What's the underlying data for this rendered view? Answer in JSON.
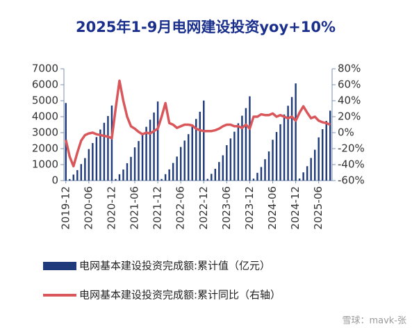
{
  "chart_data": {
    "type": "bar-line",
    "title": "2025年1-9月电网建设投资yoy+10%",
    "watermark": "雪球：mavk-张",
    "categories": [
      "2019-12",
      null,
      null,
      null,
      null,
      null,
      "2020-06",
      null,
      null,
      null,
      null,
      null,
      "2020-12",
      null,
      null,
      null,
      null,
      null,
      "2021-06",
      null,
      null,
      null,
      null,
      null,
      "2021-12",
      null,
      null,
      null,
      null,
      null,
      "2022-06",
      null,
      null,
      null,
      null,
      null,
      "2022-12",
      null,
      null,
      null,
      null,
      null,
      "2023-06",
      null,
      null,
      null,
      null,
      null,
      "2023-12",
      null,
      null,
      null,
      null,
      null,
      "2024-06",
      null,
      null,
      null,
      null,
      null,
      "2024-12",
      null,
      null,
      null,
      null,
      null,
      "2025-06",
      null,
      null,
      null
    ],
    "series": [
      {
        "name": "电网基本建设投资完成额:累计值（亿元）",
        "type": "bar",
        "color": "#1f3a7a",
        "axis": "y",
        "values": [
          4856,
          94,
          376,
          658,
          1034,
          1410,
          1974,
          2350,
          2725,
          3195,
          3618,
          4041,
          4699,
          99,
          396,
          693,
          1089,
          1485,
          2079,
          2476,
          2872,
          3367,
          3812,
          4258,
          4951,
          100,
          401,
          702,
          1103,
          1504,
          2105,
          2506,
          2907,
          3408,
          3859,
          4310,
          5012,
          106,
          422,
          739,
          1161,
          1583,
          2216,
          2638,
          3060,
          3587,
          4062,
          4537,
          5275,
          122,
          487,
          852,
          1338,
          1825,
          2555,
          3042,
          3528,
          4136,
          4684,
          5231,
          6083,
          129,
          515,
          901,
          1416,
          1931,
          2704,
          3219,
          3734,
          4378
        ]
      },
      {
        "name": "电网基本建设投资完成额:累计同比（右轴）",
        "type": "line",
        "color": "#d9575a",
        "axis": "y2",
        "values": [
          -9,
          -30,
          -42,
          -25,
          -10,
          -3,
          -1,
          0,
          -2,
          -3,
          -4,
          -5,
          -7,
          30,
          65,
          40,
          20,
          8,
          5,
          1,
          -2,
          0,
          -1,
          2,
          5,
          20,
          37,
          12,
          10,
          6,
          8,
          10,
          10,
          9,
          5,
          3,
          2,
          2,
          2,
          3,
          5,
          8,
          10,
          10,
          8,
          8,
          6,
          10,
          5,
          20,
          20,
          23,
          22,
          22,
          24,
          20,
          22,
          20,
          18,
          20,
          15,
          25,
          33,
          25,
          18,
          20,
          15,
          13,
          12,
          10
        ]
      }
    ],
    "ylim": [
      0,
      7000
    ],
    "yticks": [
      0,
      1000,
      2000,
      3000,
      4000,
      5000,
      6000,
      7000
    ],
    "y2lim": [
      -60,
      80
    ],
    "y2ticks": [
      {
        "value": -60,
        "label": "-60%"
      },
      {
        "value": -40,
        "label": "-40%"
      },
      {
        "value": -20,
        "label": "-20%"
      },
      {
        "value": 0,
        "label": "0%"
      },
      {
        "value": 20,
        "label": "20%"
      },
      {
        "value": 40,
        "label": "40%"
      },
      {
        "value": 60,
        "label": "60%"
      },
      {
        "value": 80,
        "label": "80%"
      }
    ],
    "grid": false,
    "legend": "bottom"
  }
}
